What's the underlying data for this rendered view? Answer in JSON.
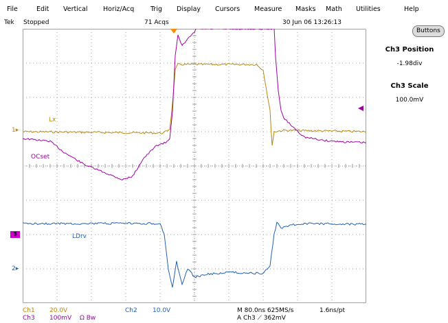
{
  "menu": [
    "File",
    "Edit",
    "Vertical",
    "Horiz/Acq",
    "Trig",
    "Display",
    "Cursors",
    "Measure",
    "Masks",
    "Math",
    "Utilities",
    "Help"
  ],
  "status": {
    "brand": "Tek",
    "run_state": "Stopped",
    "acquisitions": "71 Acqs",
    "datetime": "30 Jun 06 13:26:13"
  },
  "traces": {
    "lx_label": "Lx",
    "ocset_label": "OCset",
    "ldrv_label": "LDrv",
    "ch1_marker": "1",
    "ch2_marker": "2",
    "ch3_marker": "3"
  },
  "panel": {
    "buttons_label": "Buttons",
    "position_title": "Ch3 Position",
    "position_value": "-1.98div",
    "scale_title": "Ch3 Scale",
    "scale_value": "100.0mV"
  },
  "readout": {
    "ch1_name": "Ch1",
    "ch1_scale": "20.0V",
    "ch2_name": "Ch2",
    "ch2_scale": "10.0V",
    "ch3_name": "Ch3",
    "ch3_scale": "100mV",
    "ch3_flags": "Ω  Bw",
    "timebase": "M 80.0ns 625MS/s",
    "resolution": "1.6ns/pt",
    "trigger": "A  Ch3  ⟋  362mV"
  },
  "colors": {
    "ch1": "#b8860b",
    "ch2": "#1f5fb4",
    "ch3": "#a000a0",
    "grid": "#a0a0a0"
  }
}
